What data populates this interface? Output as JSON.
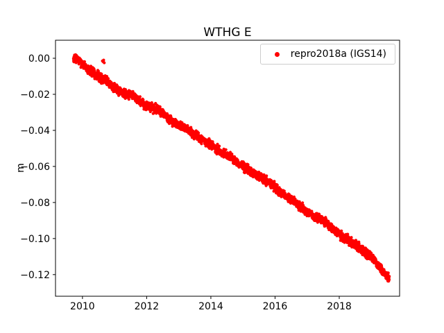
{
  "chart_data": {
    "type": "scatter",
    "title": "WTHG E",
    "xlabel": "",
    "ylabel": "m",
    "xlim": [
      2009.16,
      2019.88
    ],
    "ylim": [
      -0.132,
      0.01
    ],
    "xticks": [
      2010,
      2012,
      2014,
      2016,
      2018
    ],
    "yticks": [
      0.0,
      -0.02,
      -0.04,
      -0.06,
      -0.08,
      -0.1,
      -0.12
    ],
    "grid": false,
    "legend_position": "upper right",
    "legend_edge_color": "#cccccc",
    "series": [
      {
        "name": "repro2018a (IGS14)",
        "color": "#ff0000",
        "marker": "dot",
        "x_start": 2009.72,
        "x_end": 2019.56,
        "n_points": 2800,
        "noise_std": 0.0012,
        "trend_slope_m_per_yr": -0.0124,
        "anchor_points": [
          [
            2009.72,
            0.0005
          ],
          [
            2009.85,
            -0.0005
          ],
          [
            2010.0,
            -0.003
          ],
          [
            2010.15,
            -0.006
          ],
          [
            2010.3,
            -0.008
          ],
          [
            2010.5,
            -0.01
          ],
          [
            2010.7,
            -0.012
          ],
          [
            2010.9,
            -0.015
          ],
          [
            2011.1,
            -0.018
          ],
          [
            2011.25,
            -0.0195
          ],
          [
            2011.4,
            -0.02
          ],
          [
            2011.6,
            -0.021
          ],
          [
            2011.8,
            -0.0235
          ],
          [
            2011.95,
            -0.026
          ],
          [
            2012.1,
            -0.027
          ],
          [
            2012.3,
            -0.028
          ],
          [
            2012.45,
            -0.0295
          ],
          [
            2012.6,
            -0.032
          ],
          [
            2012.8,
            -0.035
          ],
          [
            2013.0,
            -0.037
          ],
          [
            2013.2,
            -0.039
          ],
          [
            2013.4,
            -0.041
          ],
          [
            2013.6,
            -0.0435
          ],
          [
            2013.8,
            -0.046
          ],
          [
            2014.0,
            -0.048
          ],
          [
            2014.15,
            -0.05
          ],
          [
            2014.3,
            -0.052
          ],
          [
            2014.5,
            -0.0535
          ],
          [
            2014.7,
            -0.056
          ],
          [
            2014.9,
            -0.059
          ],
          [
            2015.1,
            -0.061
          ],
          [
            2015.3,
            -0.0635
          ],
          [
            2015.5,
            -0.065
          ],
          [
            2015.7,
            -0.0675
          ],
          [
            2015.9,
            -0.07
          ],
          [
            2016.1,
            -0.0735
          ],
          [
            2016.3,
            -0.076
          ],
          [
            2016.5,
            -0.0785
          ],
          [
            2016.7,
            -0.081
          ],
          [
            2016.9,
            -0.0835
          ],
          [
            2017.1,
            -0.086
          ],
          [
            2017.3,
            -0.0885
          ],
          [
            2017.5,
            -0.0905
          ],
          [
            2017.7,
            -0.093
          ],
          [
            2017.9,
            -0.096
          ],
          [
            2018.1,
            -0.099
          ],
          [
            2018.3,
            -0.101
          ],
          [
            2018.5,
            -0.1035
          ],
          [
            2018.7,
            -0.106
          ],
          [
            2018.9,
            -0.109
          ],
          [
            2019.1,
            -0.112
          ],
          [
            2019.25,
            -0.1155
          ],
          [
            2019.4,
            -0.119
          ],
          [
            2019.5,
            -0.121
          ],
          [
            2019.56,
            -0.122
          ]
        ],
        "outliers": [
          [
            2010.62,
            -0.0015
          ],
          [
            2010.65,
            -0.002
          ],
          [
            2010.66,
            -0.001
          ],
          [
            2010.68,
            -0.0025
          ]
        ]
      }
    ]
  }
}
